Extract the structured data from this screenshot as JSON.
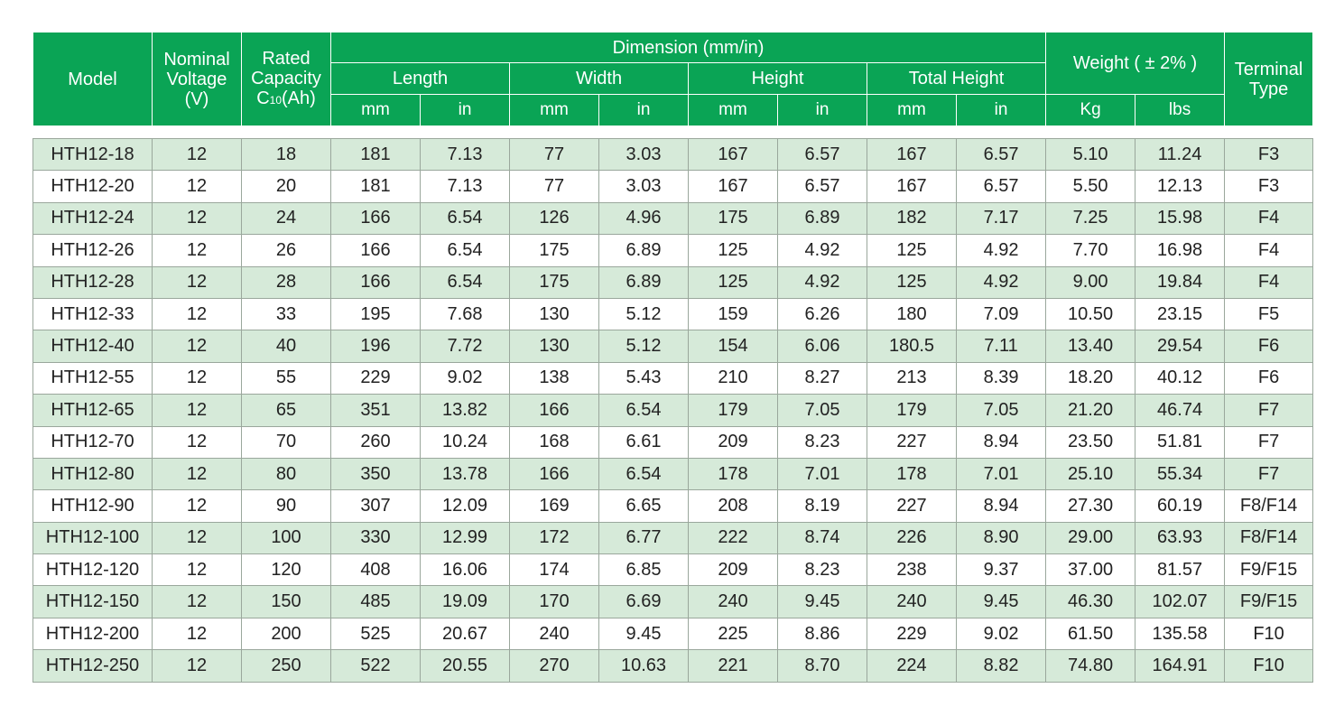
{
  "header": {
    "model": "Model",
    "nominal_voltage": [
      "Nominal",
      "Voltage",
      "(V)"
    ],
    "rated_capacity": [
      "Rated",
      "Capacity",
      "C",
      "10",
      "(Ah)"
    ],
    "dimension": "Dimension (mm/in)",
    "length": "Length",
    "width": "Width",
    "height": "Height",
    "total_height": "Total Height",
    "weight": "Weight ( ± 2% )",
    "terminal_type": [
      "Terminal",
      "Type"
    ],
    "mm": "mm",
    "in": "in",
    "kg": "Kg",
    "lbs": "lbs"
  },
  "rows": [
    [
      "HTH12-18",
      "12",
      "18",
      "181",
      "7.13",
      "77",
      "3.03",
      "167",
      "6.57",
      "167",
      "6.57",
      "5.10",
      "11.24",
      "F3"
    ],
    [
      "HTH12-20",
      "12",
      "20",
      "181",
      "7.13",
      "77",
      "3.03",
      "167",
      "6.57",
      "167",
      "6.57",
      "5.50",
      "12.13",
      "F3"
    ],
    [
      "HTH12-24",
      "12",
      "24",
      "166",
      "6.54",
      "126",
      "4.96",
      "175",
      "6.89",
      "182",
      "7.17",
      "7.25",
      "15.98",
      "F4"
    ],
    [
      "HTH12-26",
      "12",
      "26",
      "166",
      "6.54",
      "175",
      "6.89",
      "125",
      "4.92",
      "125",
      "4.92",
      "7.70",
      "16.98",
      "F4"
    ],
    [
      "HTH12-28",
      "12",
      "28",
      "166",
      "6.54",
      "175",
      "6.89",
      "125",
      "4.92",
      "125",
      "4.92",
      "9.00",
      "19.84",
      "F4"
    ],
    [
      "HTH12-33",
      "12",
      "33",
      "195",
      "7.68",
      "130",
      "5.12",
      "159",
      "6.26",
      "180",
      "7.09",
      "10.50",
      "23.15",
      "F5"
    ],
    [
      "HTH12-40",
      "12",
      "40",
      "196",
      "7.72",
      "130",
      "5.12",
      "154",
      "6.06",
      "180.5",
      "7.11",
      "13.40",
      "29.54",
      "F6"
    ],
    [
      "HTH12-55",
      "12",
      "55",
      "229",
      "9.02",
      "138",
      "5.43",
      "210",
      "8.27",
      "213",
      "8.39",
      "18.20",
      "40.12",
      "F6"
    ],
    [
      "HTH12-65",
      "12",
      "65",
      "351",
      "13.82",
      "166",
      "6.54",
      "179",
      "7.05",
      "179",
      "7.05",
      "21.20",
      "46.74",
      "F7"
    ],
    [
      "HTH12-70",
      "12",
      "70",
      "260",
      "10.24",
      "168",
      "6.61",
      "209",
      "8.23",
      "227",
      "8.94",
      "23.50",
      "51.81",
      "F7"
    ],
    [
      "HTH12-80",
      "12",
      "80",
      "350",
      "13.78",
      "166",
      "6.54",
      "178",
      "7.01",
      "178",
      "7.01",
      "25.10",
      "55.34",
      "F7"
    ],
    [
      "HTH12-90",
      "12",
      "90",
      "307",
      "12.09",
      "169",
      "6.65",
      "208",
      "8.19",
      "227",
      "8.94",
      "27.30",
      "60.19",
      "F8/F14"
    ],
    [
      "HTH12-100",
      "12",
      "100",
      "330",
      "12.99",
      "172",
      "6.77",
      "222",
      "8.74",
      "226",
      "8.90",
      "29.00",
      "63.93",
      "F8/F14"
    ],
    [
      "HTH12-120",
      "12",
      "120",
      "408",
      "16.06",
      "174",
      "6.85",
      "209",
      "8.23",
      "238",
      "9.37",
      "37.00",
      "81.57",
      "F9/F15"
    ],
    [
      "HTH12-150",
      "12",
      "150",
      "485",
      "19.09",
      "170",
      "6.69",
      "240",
      "9.45",
      "240",
      "9.45",
      "46.30",
      "102.07",
      "F9/F15"
    ],
    [
      "HTH12-200",
      "12",
      "200",
      "525",
      "20.67",
      "240",
      "9.45",
      "225",
      "8.86",
      "229",
      "9.02",
      "61.50",
      "135.58",
      "F10"
    ],
    [
      "HTH12-250",
      "12",
      "250",
      "522",
      "20.55",
      "270",
      "10.63",
      "221",
      "8.70",
      "224",
      "8.82",
      "74.80",
      "164.91",
      "F10"
    ]
  ],
  "colors": {
    "header_bg": "#0aa455",
    "header_text": "#ffffff",
    "stripe": "#d6ead9",
    "border": "#9aa79c"
  }
}
